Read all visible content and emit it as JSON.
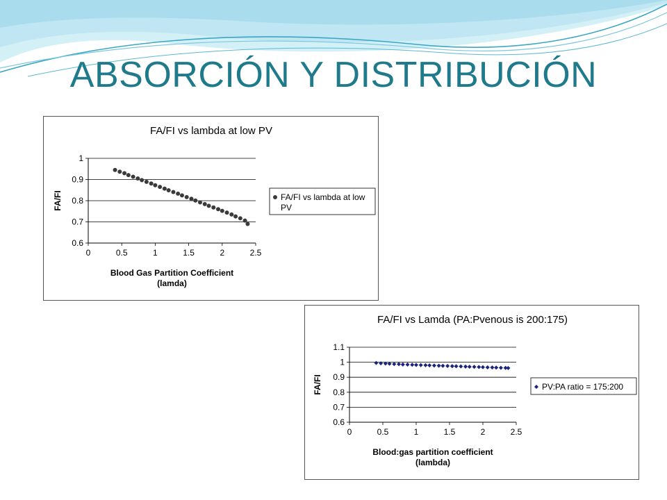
{
  "slide": {
    "title": "ABSORCIÓN Y DISTRIBUCIÓN",
    "colors": {
      "title": "#1f7a8c",
      "wave_light": "#bfe8f2",
      "wave_dark": "#3aa6c4"
    }
  },
  "chart_data": [
    {
      "type": "scatter",
      "title": "FA/FI vs lambda at low PV",
      "xlabel": "Blood Gas Partition Coefficient (lamda)",
      "xlabel_lines": [
        "Blood Gas Partition Coefficient",
        "(lamda)"
      ],
      "ylabel": "FA/FI",
      "xlim": [
        0,
        2.5
      ],
      "ylim": [
        0.6,
        1
      ],
      "xticks": [
        "0",
        "0.5",
        "1",
        "1.5",
        "2",
        "2.5"
      ],
      "yticks": [
        "0.6",
        "0.7",
        "0.8",
        "0.9",
        "1"
      ],
      "grid": "horizontal",
      "legend_position": "right",
      "marker": "circle",
      "color": "#3a3a3a",
      "series": [
        {
          "name": "FA/FI vs lambda at low PV",
          "legend_lines": [
            "FA/FI vs lambda at low",
            "PV"
          ],
          "x": [
            0.4,
            0.47,
            0.54,
            0.6,
            0.67,
            0.74,
            0.8,
            0.87,
            0.94,
            1.0,
            1.07,
            1.14,
            1.2,
            1.27,
            1.34,
            1.4,
            1.47,
            1.54,
            1.6,
            1.67,
            1.74,
            1.8,
            1.87,
            1.94,
            2.0,
            2.07,
            2.14,
            2.2,
            2.27,
            2.34,
            2.38
          ],
          "y": [
            0.945,
            0.937,
            0.93,
            0.921,
            0.913,
            0.905,
            0.897,
            0.889,
            0.881,
            0.873,
            0.865,
            0.857,
            0.849,
            0.841,
            0.833,
            0.825,
            0.817,
            0.809,
            0.801,
            0.792,
            0.784,
            0.776,
            0.768,
            0.76,
            0.752,
            0.744,
            0.735,
            0.726,
            0.717,
            0.706,
            0.69
          ]
        }
      ]
    },
    {
      "type": "scatter",
      "title": "FA/FI vs Lamda (PA:Pvenous is 200:175)",
      "xlabel": "Blood:gas partition coefficient (lambda)",
      "xlabel_lines": [
        "Blood:gas partition coefficient",
        "(lambda)"
      ],
      "ylabel": "FA/FI",
      "xlim": [
        0,
        2.5
      ],
      "ylim": [
        0.6,
        1.1
      ],
      "xticks": [
        "0",
        "0.5",
        "1",
        "1.5",
        "2",
        "2.5"
      ],
      "yticks": [
        "0.6",
        "0.7",
        "0.8",
        "0.9",
        "1",
        "1.1"
      ],
      "grid": "horizontal",
      "legend_position": "right",
      "marker": "diamond",
      "color": "#1a237e",
      "series": [
        {
          "name": "PV:PA ratio = 175:200",
          "legend_lines": [
            "PV:PA ratio = 175:200"
          ],
          "x": [
            0.4,
            0.47,
            0.54,
            0.6,
            0.67,
            0.74,
            0.8,
            0.87,
            0.94,
            1.0,
            1.07,
            1.14,
            1.2,
            1.27,
            1.34,
            1.4,
            1.47,
            1.54,
            1.6,
            1.67,
            1.74,
            1.8,
            1.87,
            1.94,
            2.0,
            2.07,
            2.14,
            2.2,
            2.27,
            2.34,
            2.38
          ],
          "y": [
            0.995,
            0.993,
            0.991,
            0.99,
            0.988,
            0.987,
            0.985,
            0.984,
            0.983,
            0.982,
            0.981,
            0.98,
            0.979,
            0.978,
            0.977,
            0.976,
            0.975,
            0.974,
            0.973,
            0.972,
            0.971,
            0.97,
            0.969,
            0.968,
            0.967,
            0.966,
            0.965,
            0.964,
            0.963,
            0.962,
            0.961
          ]
        }
      ]
    }
  ]
}
